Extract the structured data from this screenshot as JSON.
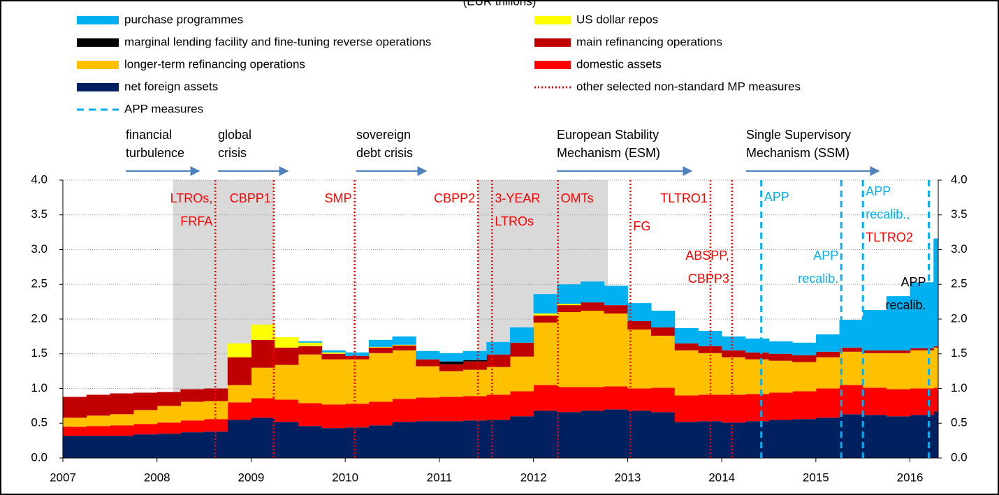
{
  "chart_data": {
    "type": "stacked-step-area",
    "subtitle": "(EUR trillions)",
    "x": [
      2007,
      2007.25,
      2007.5,
      2007.75,
      2008,
      2008.25,
      2008.5,
      2008.75,
      2009,
      2009.25,
      2009.5,
      2009.75,
      2010,
      2010.25,
      2010.5,
      2010.75,
      2011,
      2011.25,
      2011.5,
      2011.75,
      2012,
      2012.25,
      2012.5,
      2012.75,
      2013,
      2013.25,
      2013.5,
      2013.75,
      2014,
      2014.25,
      2014.5,
      2014.75,
      2015,
      2015.25,
      2015.5,
      2015.75,
      2016,
      2016.25
    ],
    "xlim": [
      2007,
      2016.3
    ],
    "xticks": [
      2007,
      2008,
      2009,
      2010,
      2011,
      2012,
      2013,
      2014,
      2015,
      2016
    ],
    "ylim": [
      0,
      4
    ],
    "yticks": [
      {
        "value": 0,
        "label": "0.0"
      },
      {
        "value": 0.5,
        "label": "0.5"
      },
      {
        "value": 1,
        "label": "1.0"
      },
      {
        "value": 1.5,
        "label": "1.5"
      },
      {
        "value": 2,
        "label": "2.0"
      },
      {
        "value": 2.5,
        "label": "2.5"
      },
      {
        "value": 3,
        "label": "3.0"
      },
      {
        "value": 3.5,
        "label": "3.5"
      },
      {
        "value": 4,
        "label": "4.0"
      }
    ],
    "y2lim": [
      0,
      4
    ],
    "y2ticks": [
      {
        "value": 0,
        "label": "0.0"
      },
      {
        "value": 0.5,
        "label": "0.5"
      },
      {
        "value": 1,
        "label": "1.0"
      },
      {
        "value": 1.5,
        "label": "1.5"
      },
      {
        "value": 2,
        "label": "2.0"
      },
      {
        "value": 2.5,
        "label": "2.5"
      },
      {
        "value": 3,
        "label": "3.0"
      },
      {
        "value": 3.5,
        "label": "3.5"
      },
      {
        "value": 4,
        "label": "4.0"
      }
    ],
    "grid": true,
    "series": [
      {
        "name": "net foreign assets",
        "color": "#002060",
        "values": [
          0.32,
          0.32,
          0.32,
          0.34,
          0.35,
          0.37,
          0.38,
          0.55,
          0.58,
          0.52,
          0.46,
          0.43,
          0.44,
          0.47,
          0.52,
          0.53,
          0.53,
          0.54,
          0.55,
          0.6,
          0.68,
          0.66,
          0.68,
          0.7,
          0.68,
          0.66,
          0.52,
          0.53,
          0.51,
          0.53,
          0.55,
          0.56,
          0.58,
          0.63,
          0.62,
          0.6,
          0.62,
          0.67
        ]
      },
      {
        "name": "domestic assets",
        "color": "#ff0000",
        "values": [
          0.13,
          0.14,
          0.15,
          0.15,
          0.16,
          0.17,
          0.18,
          0.25,
          0.28,
          0.32,
          0.33,
          0.34,
          0.34,
          0.34,
          0.33,
          0.34,
          0.35,
          0.35,
          0.36,
          0.36,
          0.37,
          0.36,
          0.34,
          0.33,
          0.32,
          0.35,
          0.38,
          0.38,
          0.4,
          0.39,
          0.39,
          0.4,
          0.42,
          0.42,
          0.39,
          0.39,
          0.38,
          0.34
        ]
      },
      {
        "name": "longer-term refinancing operations",
        "color": "#ffc000",
        "values": [
          0.13,
          0.15,
          0.16,
          0.2,
          0.24,
          0.27,
          0.26,
          0.25,
          0.44,
          0.5,
          0.7,
          0.65,
          0.64,
          0.7,
          0.7,
          0.45,
          0.37,
          0.38,
          0.4,
          0.5,
          0.9,
          1.08,
          1.1,
          1.05,
          0.85,
          0.75,
          0.65,
          0.6,
          0.54,
          0.5,
          0.46,
          0.42,
          0.45,
          0.48,
          0.5,
          0.52,
          0.55,
          0.58
        ]
      },
      {
        "name": "main refinancing operations",
        "color": "#c00000",
        "values": [
          0.3,
          0.3,
          0.3,
          0.25,
          0.2,
          0.18,
          0.18,
          0.4,
          0.4,
          0.25,
          0.12,
          0.08,
          0.05,
          0.08,
          0.07,
          0.1,
          0.1,
          0.12,
          0.18,
          0.2,
          0.1,
          0.1,
          0.12,
          0.12,
          0.12,
          0.12,
          0.1,
          0.1,
          0.1,
          0.1,
          0.1,
          0.1,
          0.08,
          0.06,
          0.04,
          0.04,
          0.03,
          0.02
        ]
      },
      {
        "name": "marginal lending facility and fine-tuning reverse operations",
        "color": "#000000",
        "values": [
          0,
          0,
          0,
          0,
          0,
          0,
          0,
          0,
          0,
          0,
          0,
          0,
          0,
          0,
          0,
          0,
          0.04,
          0.02,
          0,
          0,
          0,
          0,
          0,
          0,
          0,
          0,
          0,
          0,
          0,
          0,
          0,
          0,
          0,
          0,
          0,
          0,
          0,
          0
        ]
      },
      {
        "name": "US dollar repos",
        "color": "#ffff00",
        "values": [
          0,
          0,
          0,
          0,
          0,
          0,
          0,
          0.2,
          0.22,
          0.15,
          0.05,
          0.02,
          0,
          0.01,
          0.01,
          0,
          0,
          0,
          0,
          0,
          0.03,
          0.02,
          0,
          0,
          0,
          0,
          0,
          0,
          0,
          0,
          0,
          0,
          0,
          0,
          0,
          0,
          0,
          0
        ]
      },
      {
        "name": "purchase programmes",
        "color": "#00b0f0",
        "values": [
          0,
          0,
          0,
          0,
          0,
          0,
          0,
          0,
          0,
          0,
          0.02,
          0.03,
          0.05,
          0.1,
          0.12,
          0.12,
          0.12,
          0.13,
          0.18,
          0.22,
          0.28,
          0.28,
          0.3,
          0.28,
          0.26,
          0.24,
          0.22,
          0.22,
          0.2,
          0.2,
          0.18,
          0.18,
          0.25,
          0.4,
          0.58,
          0.78,
          0.95,
          1.55
        ]
      }
    ],
    "shaded_periods": [
      [
        2008.17,
        2009.24
      ],
      [
        2011.41,
        2012.79
      ]
    ],
    "event_lines": [
      {
        "name": "other selected non-standard MP measures",
        "color": "#ff0000",
        "style": "dotted",
        "events": [
          {
            "x": 2008.62,
            "label": [
              "LTROs,",
              "FRFA"
            ]
          },
          {
            "x": 2009.24,
            "label": [
              "CBPP1"
            ]
          },
          {
            "x": 2010.1,
            "label": [
              "SMP"
            ]
          },
          {
            "x": 2011.41,
            "label": [
              "CBPP2"
            ]
          },
          {
            "x": 2011.56,
            "label": [
              "3-YEAR",
              "LTROs"
            ]
          },
          {
            "x": 2012.26,
            "label": [
              "OMTs"
            ]
          },
          {
            "x": 2013.03,
            "label": [
              "FG"
            ]
          },
          {
            "x": 2013.88,
            "label": [
              "TLTRO1"
            ]
          },
          {
            "x": 2014.11,
            "label": [
              "ABSPP,",
              "CBPP3"
            ]
          }
        ]
      },
      {
        "name": "APP measures",
        "color": "#00b0f0",
        "style": "dashed",
        "events": [
          {
            "x": 2014.42,
            "label": [
              "APP"
            ]
          },
          {
            "x": 2015.27,
            "label": [
              "APP",
              "recalib."
            ]
          },
          {
            "x": 2015.5,
            "label": [
              "APP",
              "recalib.,",
              "TLTRO2"
            ],
            "label_colors": [
              "#00b0f0",
              "#00b0f0",
              "#ff0000"
            ]
          },
          {
            "x": 2016.2,
            "label": [
              "APP",
              "recalib."
            ],
            "label_colors": [
              "#000000",
              "#000000"
            ]
          }
        ]
      }
    ],
    "periods": [
      [
        "financial",
        "turbulence"
      ],
      [
        "global",
        "crisis"
      ],
      [
        "sovereign",
        "debt crisis"
      ],
      [
        "European Stability",
        "Mechanism (ESM)"
      ],
      [
        "Single Supervisory",
        "Mechanism (SSM)"
      ]
    ]
  }
}
